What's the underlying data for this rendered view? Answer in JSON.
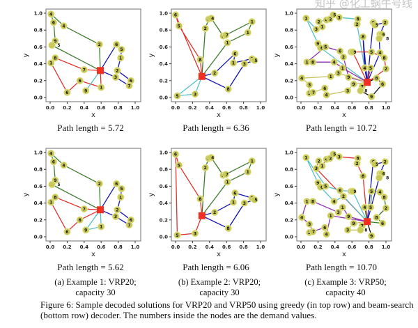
{
  "colors": {
    "node_fill": "#c9c95a",
    "node_stroke": "#e8e8a0",
    "depot": "#f03020",
    "red": "#e0302a",
    "green": "#3d7a2a",
    "blue": "#1414b0",
    "cyan": "#55c0c8",
    "purple": "#9030b0",
    "yellow": "#c8c060",
    "black": "#111111"
  },
  "subcaptions": [
    {
      "line1": "(a) Example 1: VRP20;",
      "line2": "capacity 30"
    },
    {
      "line1": "(b) Example 2: VRP20;",
      "line2": "capacity 30"
    },
    {
      "line1": "(c) Example 3: VRP50;",
      "line2": "capacity 40"
    }
  ],
  "caption": {
    "line1": "Figure 6: Sample decoded solutions for VRP20 and VRP50 using greedy (in top row) and beam-search",
    "line2": "(bottom row) decoder. The numbers inside the nodes are the demand values."
  },
  "watermark": "知乎 @化工蜗牛号线",
  "chart_data": [
    {
      "type": "scatter",
      "xlabel": "x",
      "ylabel": "y",
      "xlim": [
        0,
        1
      ],
      "ylim": [
        0,
        1
      ],
      "ticks": [
        "0.0",
        "0.2",
        "0.4",
        "0.6",
        "0.8",
        "1.0"
      ],
      "depot": [
        0.59,
        0.32
      ],
      "nodes": [
        [
          0.01,
          0.99,
          4
        ],
        [
          0.04,
          0.89,
          6
        ],
        [
          0.16,
          0.85,
          4
        ],
        [
          0.06,
          0.67,
          9
        ],
        [
          0.02,
          0.62,
          5
        ],
        [
          0.58,
          0.63,
          2
        ],
        [
          0.06,
          0.47,
          8
        ],
        [
          0.01,
          0.41,
          1
        ],
        [
          0.4,
          0.33,
          7
        ],
        [
          0.2,
          0.06,
          6
        ],
        [
          0.35,
          0.2,
          6
        ],
        [
          0.42,
          0.08,
          9
        ],
        [
          0.6,
          0.12,
          1
        ],
        [
          0.78,
          0.63,
          6
        ],
        [
          0.84,
          0.57,
          5
        ],
        [
          0.83,
          0.47,
          1
        ],
        [
          0.79,
          0.32,
          2
        ],
        [
          0.77,
          0.24,
          3
        ],
        [
          0.95,
          0.2,
          6
        ],
        [
          0.93,
          0.14,
          7
        ]
      ],
      "greedy": {
        "path_length": "Path length = 5.72",
        "routes": [
          {
            "color": "green",
            "stops": [
              5,
              2,
              0,
              1,
              3,
              4
            ]
          },
          {
            "color": "red",
            "stops": [
              8,
              6,
              7,
              9,
              10,
              12
            ]
          },
          {
            "color": "cyan",
            "stops": [
              11
            ]
          },
          {
            "color": "blue",
            "stops": [
              13,
              14,
              15,
              16,
              18,
              19,
              17
            ]
          }
        ]
      },
      "beam": {
        "path_length": "Path length = 5.62",
        "routes": [
          {
            "color": "green",
            "stops": [
              5,
              2,
              0,
              1,
              3,
              4
            ]
          },
          {
            "color": "red",
            "stops": [
              8,
              6,
              7,
              9,
              10
            ]
          },
          {
            "color": "cyan",
            "stops": [
              12,
              11
            ]
          },
          {
            "color": "blue",
            "stops": [
              13,
              14,
              15,
              16,
              18,
              19,
              17
            ]
          }
        ]
      }
    },
    {
      "type": "scatter",
      "xlabel": "x",
      "ylabel": "y",
      "xlim": [
        0,
        1
      ],
      "ylim": [
        0,
        1
      ],
      "ticks": [
        "0.0",
        "0.2",
        "0.4",
        "0.6",
        "0.8",
        "1.0"
      ],
      "depot": [
        0.31,
        0.25
      ],
      "nodes": [
        [
          0.0,
          0.98,
          6
        ],
        [
          0.04,
          0.85,
          5
        ],
        [
          0.29,
          0.45,
          8
        ],
        [
          0.02,
          0.02,
          5
        ],
        [
          0.23,
          0.04,
          3
        ],
        [
          0.35,
          0.82,
          2
        ],
        [
          0.39,
          0.93,
          5
        ],
        [
          0.42,
          0.94,
          4
        ],
        [
          0.56,
          0.73,
          8
        ],
        [
          0.59,
          0.74,
          7
        ],
        [
          0.61,
          0.65,
          1
        ],
        [
          0.9,
          0.9,
          1
        ],
        [
          0.85,
          0.77,
          1
        ],
        [
          0.46,
          0.29,
          2
        ],
        [
          0.7,
          0.52,
          6
        ],
        [
          0.68,
          0.41,
          1
        ],
        [
          0.81,
          0.4,
          3
        ],
        [
          0.9,
          0.46,
          2
        ],
        [
          0.93,
          0.44,
          5
        ],
        [
          0.62,
          0.1,
          8
        ]
      ],
      "greedy": {
        "path_length": "Path length = 6.36",
        "routes": [
          {
            "color": "green",
            "stops": [
              5,
              6,
              7,
              8,
              9,
              11,
              12,
              10
            ]
          },
          {
            "color": "red",
            "stops": [
              2,
              1,
              0
            ]
          },
          {
            "color": "cyan",
            "stops": [
              3,
              4
            ]
          },
          {
            "color": "blue",
            "stops": [
              13,
              14,
              15,
              17,
              18,
              16,
              19
            ]
          }
        ]
      },
      "beam": {
        "path_length": "Path length = 6.06",
        "routes": [
          {
            "color": "green",
            "stops": [
              5,
              6,
              7,
              8,
              9,
              11,
              12,
              10
            ]
          },
          {
            "color": "red",
            "stops": [
              2,
              1,
              0,
              3,
              4
            ]
          },
          {
            "color": "blue",
            "stops": [
              13,
              15,
              14,
              17,
              18,
              16,
              19
            ]
          }
        ]
      }
    },
    {
      "type": "scatter",
      "xlabel": "x",
      "ylabel": "y",
      "xlim": [
        0,
        1
      ],
      "ylim": [
        0,
        1
      ],
      "ticks": [
        "0.0",
        "0.2",
        "0.4",
        "0.6",
        "0.8",
        "1.0"
      ],
      "depot": [
        0.78,
        0.18
      ],
      "nodes": [
        [
          0.06,
          0.94,
          1
        ],
        [
          0.21,
          0.9,
          2
        ],
        [
          0.18,
          0.81,
          3
        ],
        [
          0.25,
          0.84,
          1
        ],
        [
          0.3,
          0.92,
          4
        ],
        [
          0.34,
          0.93,
          2
        ],
        [
          0.38,
          0.98,
          5
        ],
        [
          0.45,
          0.95,
          3
        ],
        [
          0.67,
          0.93,
          8
        ],
        [
          0.66,
          0.87,
          2
        ],
        [
          0.85,
          0.89,
          6
        ],
        [
          0.87,
          0.86,
          5
        ],
        [
          0.99,
          0.89,
          2
        ],
        [
          0.93,
          0.75,
          6
        ],
        [
          0.95,
          0.75,
          6
        ],
        [
          0.92,
          0.7,
          8
        ],
        [
          0.73,
          0.72,
          8
        ],
        [
          0.2,
          0.64,
          9
        ],
        [
          0.23,
          0.59,
          6
        ],
        [
          0.29,
          0.6,
          5
        ],
        [
          0.46,
          0.55,
          6
        ],
        [
          0.5,
          0.48,
          2
        ],
        [
          0.59,
          0.54,
          1
        ],
        [
          0.61,
          0.54,
          9
        ],
        [
          0.83,
          0.54,
          5
        ],
        [
          0.93,
          0.53,
          4
        ],
        [
          0.98,
          0.47,
          8
        ],
        [
          1.0,
          0.34,
          2
        ],
        [
          0.07,
          0.42,
          1
        ],
        [
          0.14,
          0.42,
          8
        ],
        [
          0.39,
          0.42,
          4
        ],
        [
          0.49,
          0.35,
          1
        ],
        [
          0.44,
          0.29,
          3
        ],
        [
          0.35,
          0.25,
          1
        ],
        [
          0.56,
          0.24,
          9
        ],
        [
          0.75,
          0.35,
          4
        ],
        [
          0.82,
          0.35,
          5
        ],
        [
          0.01,
          0.23,
          4
        ],
        [
          0.1,
          0.15,
          3
        ],
        [
          0.1,
          0.05,
          2
        ],
        [
          0.14,
          0.06,
          7
        ],
        [
          0.28,
          0.11,
          6
        ],
        [
          0.3,
          0.03,
          4
        ],
        [
          0.55,
          0.08,
          3
        ],
        [
          0.62,
          0.16,
          9
        ],
        [
          0.72,
          0.13,
          7
        ],
        [
          0.7,
          0.08,
          8
        ],
        [
          0.83,
          0.01,
          9
        ],
        [
          0.89,
          0.23,
          8
        ],
        [
          0.96,
          0.16,
          6
        ]
      ],
      "greedy": {
        "path_length": "Path length = 10.72",
        "routes": [
          {
            "color": "cyan",
            "stops": [
              9,
              8,
              7,
              6,
              5,
              4,
              1,
              3,
              2,
              0,
              17,
              18
            ]
          },
          {
            "color": "purple",
            "stops": [
              34,
              21,
              20,
              19,
              28,
              29,
              30,
              31
            ]
          },
          {
            "color": "yellow",
            "stops": [
              44,
              43,
              42,
              41,
              40,
              39,
              38,
              37,
              33,
              32
            ]
          },
          {
            "color": "blue",
            "stops": [
              35,
              16
            ]
          },
          {
            "color": "blue",
            "stops": [
              25,
              15,
              14,
              13,
              12,
              11,
              10
            ]
          },
          {
            "color": "red",
            "stops": [
              23,
              22,
              24,
              26,
              27
            ]
          },
          {
            "color": "red",
            "stops": [
              36
            ]
          },
          {
            "color": "black",
            "stops": [
              48,
              49,
              47,
              46,
              45
            ]
          }
        ]
      },
      "beam": {
        "path_length": "Path length = 10.70",
        "routes": [
          {
            "color": "red",
            "stops": [
              16,
              9,
              8,
              7,
              6,
              5,
              4,
              3,
              1,
              2
            ]
          },
          {
            "color": "cyan",
            "stops": [
              23,
              22,
              20,
              19,
              0,
              17,
              18,
              30,
              21
            ]
          },
          {
            "color": "purple",
            "stops": [
              34,
              31,
              32,
              29,
              28,
              37,
              38,
              40,
              39,
              41,
              42,
              33
            ]
          },
          {
            "color": "blue",
            "stops": [
              15,
              14,
              13,
              12,
              11,
              10
            ]
          },
          {
            "color": "green",
            "stops": [
              35,
              36,
              24,
              25,
              26,
              27,
              48,
              49
            ]
          },
          {
            "color": "yellow",
            "stops": [
              44,
              43,
              46,
              45
            ]
          },
          {
            "color": "black",
            "stops": [
              47
            ]
          }
        ]
      }
    }
  ]
}
